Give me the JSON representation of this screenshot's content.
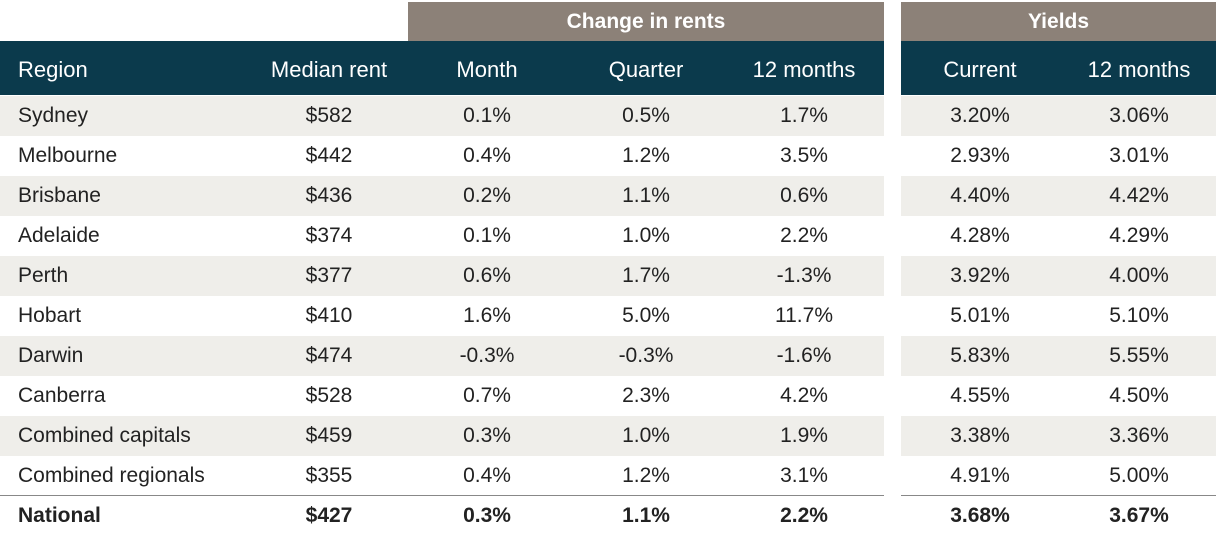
{
  "chart_data": {
    "type": "table",
    "group_headers": {
      "change": "Change in rents",
      "yields": "Yields"
    },
    "columns": [
      "Region",
      "Median rent",
      "Month",
      "Quarter",
      "12 months",
      "Current",
      "12 months"
    ],
    "rows": [
      [
        "Sydney",
        "$582",
        "0.1%",
        "0.5%",
        "1.7%",
        "3.20%",
        "3.06%"
      ],
      [
        "Melbourne",
        "$442",
        "0.4%",
        "1.2%",
        "3.5%",
        "2.93%",
        "3.01%"
      ],
      [
        "Brisbane",
        "$436",
        "0.2%",
        "1.1%",
        "0.6%",
        "4.40%",
        "4.42%"
      ],
      [
        "Adelaide",
        "$374",
        "0.1%",
        "1.0%",
        "2.2%",
        "4.28%",
        "4.29%"
      ],
      [
        "Perth",
        "$377",
        "0.6%",
        "1.7%",
        "-1.3%",
        "3.92%",
        "4.00%"
      ],
      [
        "Hobart",
        "$410",
        "1.6%",
        "5.0%",
        "11.7%",
        "5.01%",
        "5.10%"
      ],
      [
        "Darwin",
        "$474",
        "-0.3%",
        "-0.3%",
        "-1.6%",
        "5.83%",
        "5.55%"
      ],
      [
        "Canberra",
        "$528",
        "0.7%",
        "2.3%",
        "4.2%",
        "4.55%",
        "4.50%"
      ],
      [
        "Combined capitals",
        "$459",
        "0.3%",
        "1.0%",
        "1.9%",
        "3.38%",
        "3.36%"
      ],
      [
        "Combined regionals",
        "$355",
        "0.4%",
        "1.2%",
        "3.1%",
        "4.91%",
        "5.00%"
      ],
      [
        "National",
        "$427",
        "0.3%",
        "1.1%",
        "2.2%",
        "3.68%",
        "3.67%"
      ]
    ]
  },
  "colors": {
    "group_header_bg": "#8c8178",
    "header_bg": "#0b3a4c",
    "stripe_bg": "#efeeea",
    "text": "#222222"
  }
}
